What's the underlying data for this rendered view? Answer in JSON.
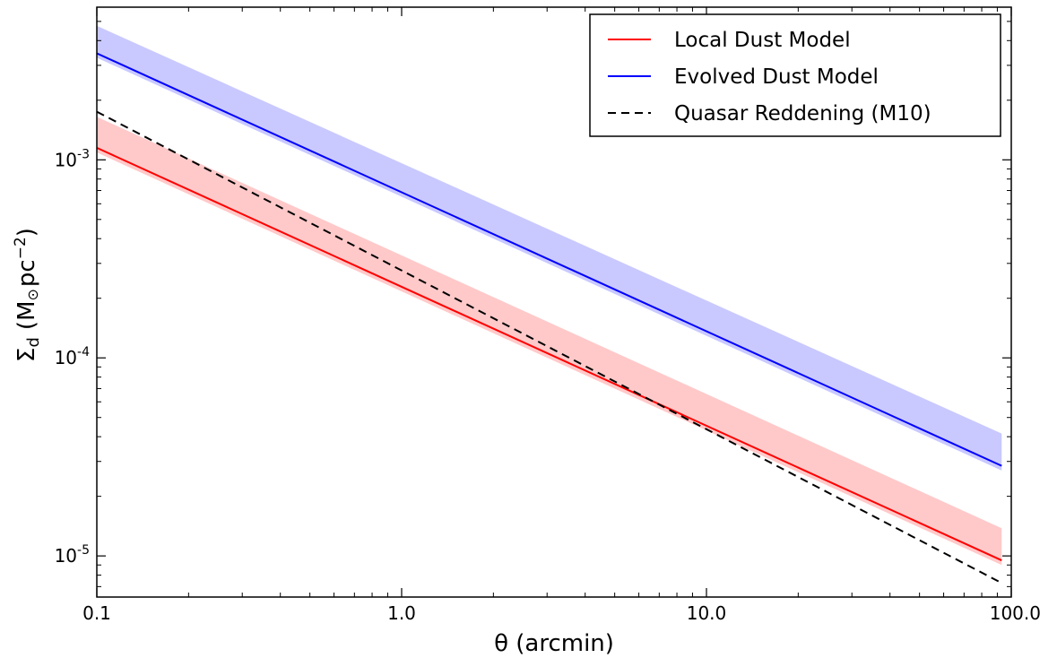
{
  "chart_data": {
    "type": "line",
    "title": "",
    "xlabel": "θ (arcmin)",
    "ylabel_main": "Σ",
    "ylabel_sub": "d",
    "ylabel_unit_prefix": "(M",
    "ylabel_unit_sun": "⊙",
    "ylabel_unit_mid": "pc",
    "ylabel_unit_exp": "−2",
    "ylabel_unit_suffix": ")",
    "xscale": "log",
    "yscale": "log",
    "xlim": [
      0.1,
      100.0
    ],
    "ylim": [
      6.2e-06,
      0.0059
    ],
    "x_ticks": [
      {
        "value": 0.1,
        "label": "0.1"
      },
      {
        "value": 1.0,
        "label": "1.0"
      },
      {
        "value": 10.0,
        "label": "10.0"
      },
      {
        "value": 100.0,
        "label": "100.0"
      }
    ],
    "y_ticks": [
      {
        "value": 1e-05,
        "base": "10",
        "exp": "-5"
      },
      {
        "value": 0.0001,
        "base": "10",
        "exp": "-4"
      },
      {
        "value": 0.001,
        "base": "10",
        "exp": "-3"
      }
    ],
    "x": [
      0.1,
      93.0
    ],
    "series": [
      {
        "name": "Local Dust Model",
        "color": "#ff0000",
        "linestyle": "solid",
        "values": [
          0.00115,
          9.5e-06
        ]
      },
      {
        "name": "Evolved Dust Model",
        "color": "#0000ff",
        "linestyle": "solid",
        "values": [
          0.00345,
          2.85e-05
        ]
      },
      {
        "name": "Quasar Reddening (M10)",
        "color": "#000000",
        "linestyle": "dashed",
        "values": [
          0.00175,
          7.3e-06
        ]
      }
    ],
    "bands": [
      {
        "color": "#ff9d9d",
        "opacity": 0.55,
        "lower": [
          0.00109,
          9e-06
        ],
        "upper": [
          0.00165,
          1.38e-05
        ]
      },
      {
        "color": "#9d9dff",
        "opacity": 0.55,
        "lower": [
          0.00328,
          2.7e-05
        ],
        "upper": [
          0.00475,
          4.15e-05
        ]
      }
    ],
    "legend_position": "top-right",
    "grid": false
  }
}
